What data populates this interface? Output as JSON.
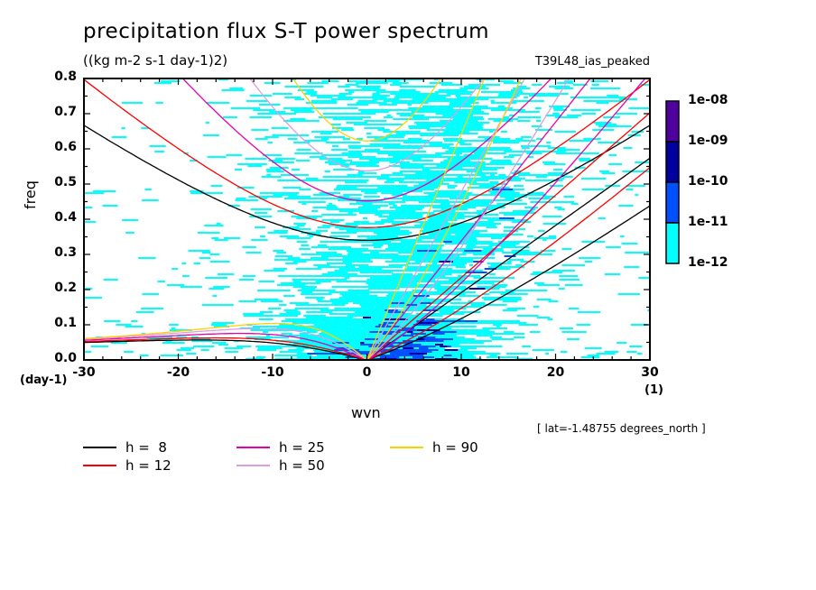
{
  "chart_data": {
    "type": "heatmap",
    "title": "precipitation flux S-T power spectrum",
    "subtitle": "((kg m-2 s-1 day-1)2)",
    "experiment": "T39L48_ias_peaked",
    "xlabel": "wvn",
    "ylabel": "freq",
    "x_unit": "(1)",
    "y_unit": "(day-1)",
    "xlim": [
      -30,
      30
    ],
    "ylim": [
      0.0,
      0.8
    ],
    "x_ticks": [
      "-30",
      "-20",
      "-10",
      "0",
      "10",
      "20",
      "30"
    ],
    "y_ticks": [
      "0.0",
      "0.1",
      "0.2",
      "0.3",
      "0.4",
      "0.5",
      "0.6",
      "0.7",
      "0.8"
    ],
    "colorbar": {
      "levels": [
        "1e-08",
        "1e-09",
        "1e-10",
        "1e-11",
        "1e-12"
      ],
      "colors": [
        "#50009f",
        "#0000a0",
        "#0050ff",
        "#00ffff"
      ]
    },
    "annotation": "[ lat=-1.48755 degrees_north ]",
    "dispersion_curves": [
      {
        "label": "h =  8",
        "h": 8,
        "color": "#000000"
      },
      {
        "label": "h = 12",
        "h": 12,
        "color": "#ff0000"
      },
      {
        "label": "h = 25",
        "h": 25,
        "color": "#e800b0"
      },
      {
        "label": "h = 50",
        "h": 50,
        "color": "#dc9ee0"
      },
      {
        "label": "h = 90",
        "h": 90,
        "color": "#ffd000"
      }
    ]
  }
}
